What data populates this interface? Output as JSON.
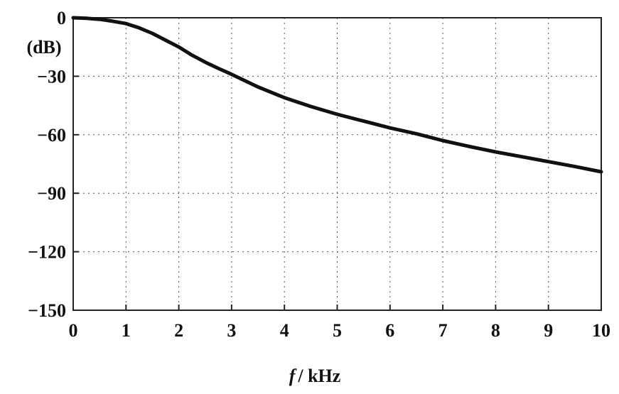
{
  "chart_data": {
    "type": "line",
    "title": "",
    "xlabel": {
      "var": "f",
      "unit": "/ kHz"
    },
    "ylabel": "(dB)",
    "xlim": [
      0,
      10
    ],
    "ylim": [
      -150,
      0
    ],
    "x_ticks": [
      0,
      1,
      2,
      3,
      4,
      5,
      6,
      7,
      8,
      9,
      10
    ],
    "y_ticks": [
      0,
      -30,
      -60,
      -90,
      -120,
      -150
    ],
    "grid": true,
    "series": [
      {
        "x": [
          0,
          0.25,
          0.5,
          0.75,
          1.0,
          1.25,
          1.5,
          1.75,
          2.0,
          2.25,
          2.5,
          2.75,
          3.0,
          3.5,
          4.0,
          4.5,
          5.0,
          5.5,
          6.0,
          6.5,
          7.0,
          7.5,
          8.0,
          8.5,
          9.0,
          9.5,
          10.0
        ],
        "y": [
          0,
          -0.3,
          -0.8,
          -1.8,
          -3.0,
          -5.2,
          -8.0,
          -11.5,
          -15.0,
          -19.2,
          -22.8,
          -26.0,
          -29.0,
          -35.5,
          -41.0,
          -45.5,
          -49.5,
          -53.0,
          -56.5,
          -59.5,
          -63.0,
          -66.0,
          -68.8,
          -71.3,
          -73.8,
          -76.3,
          -79.0
        ]
      }
    ]
  }
}
